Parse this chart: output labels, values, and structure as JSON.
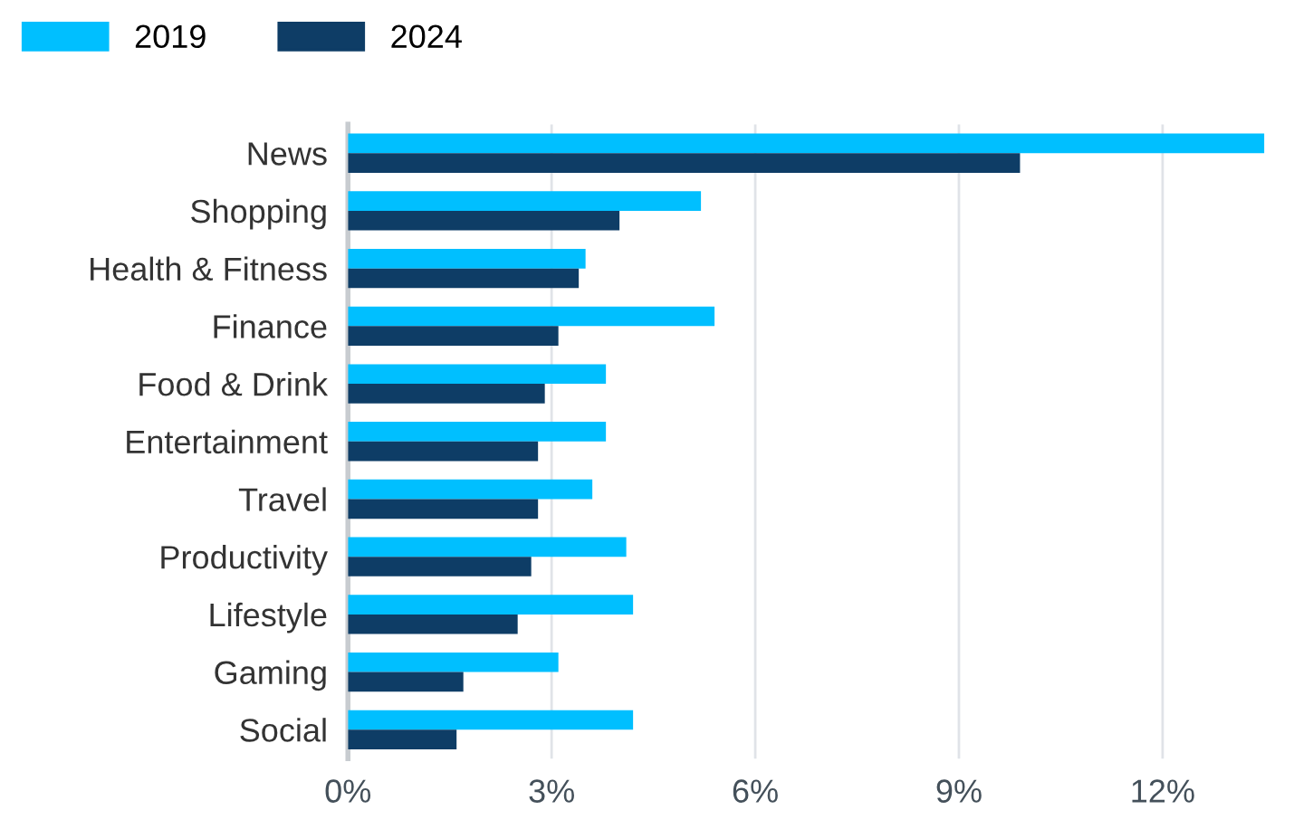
{
  "chart_data": {
    "type": "bar",
    "orientation": "horizontal",
    "categories": [
      "News",
      "Shopping",
      "Health & Fitness",
      "Finance",
      "Food & Drink",
      "Entertainment",
      "Travel",
      "Productivity",
      "Lifestyle",
      "Gaming",
      "Social"
    ],
    "series": [
      {
        "name": "2019",
        "color": "#00bfff",
        "values": [
          13.5,
          5.2,
          3.5,
          5.4,
          3.8,
          3.8,
          3.6,
          4.1,
          4.2,
          3.1,
          4.2
        ]
      },
      {
        "name": "2024",
        "color": "#0e3d66",
        "values": [
          9.9,
          4.0,
          3.4,
          3.1,
          2.9,
          2.8,
          2.8,
          2.7,
          2.5,
          1.7,
          1.6
        ]
      }
    ],
    "xlim": [
      0,
      13.5
    ],
    "xticks": [
      {
        "value": 0,
        "label": "0%"
      },
      {
        "value": 3,
        "label": "3%"
      },
      {
        "value": 6,
        "label": "6%"
      },
      {
        "value": 9,
        "label": "9%"
      },
      {
        "value": 12,
        "label": "12%"
      }
    ],
    "grid": "x",
    "legend": "top left"
  }
}
